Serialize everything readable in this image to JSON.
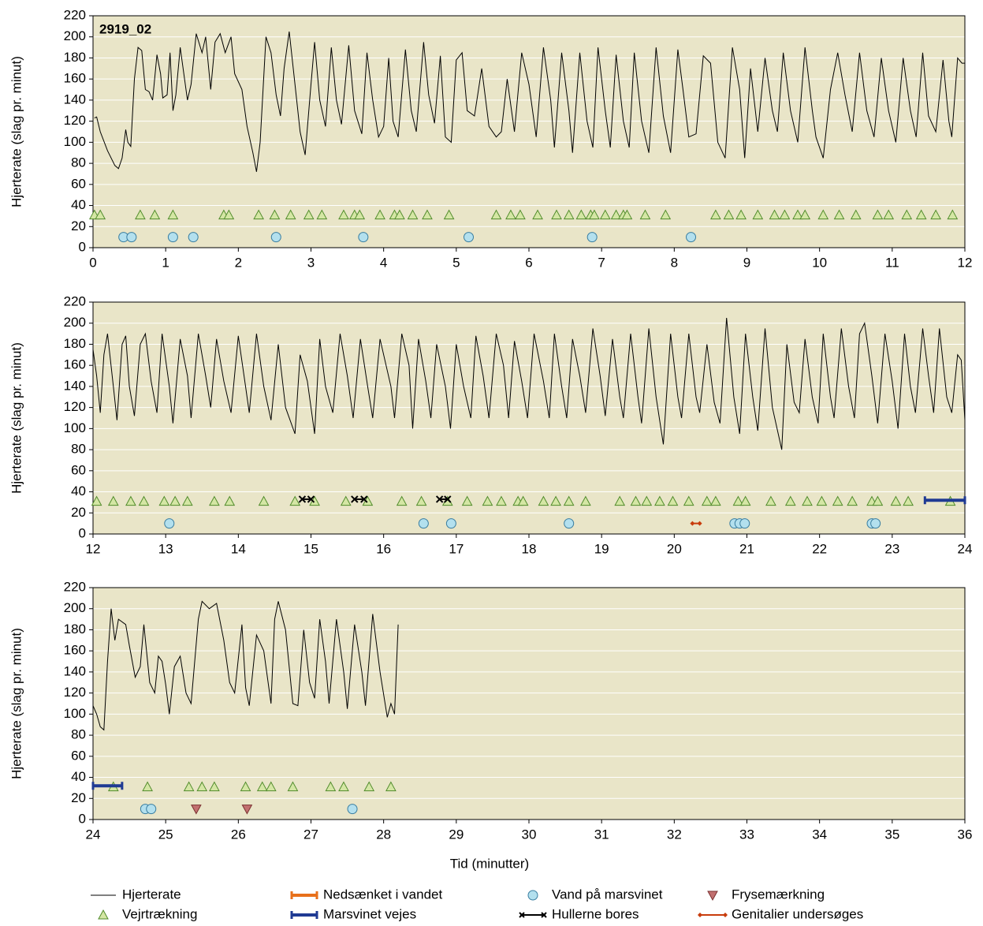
{
  "chart_data": {
    "type": "line",
    "annotation": "2919_02",
    "xlabel": "Tid (minutter)",
    "ylabel": "Hjerterate (slag pr. minut)",
    "ylim": [
      0,
      220
    ],
    "yticks": [
      0,
      20,
      40,
      60,
      80,
      100,
      120,
      140,
      160,
      180,
      200,
      220
    ],
    "grid": true,
    "panels": [
      {
        "xlim": [
          0,
          12
        ],
        "xticks": [
          0,
          1,
          2,
          3,
          4,
          5,
          6,
          7,
          8,
          9,
          10,
          11,
          12
        ]
      },
      {
        "xlim": [
          12,
          24
        ],
        "xticks": [
          12,
          13,
          14,
          15,
          16,
          17,
          18,
          19,
          20,
          21,
          22,
          23,
          24
        ]
      },
      {
        "xlim": [
          24,
          36
        ],
        "xticks": [
          24,
          25,
          26,
          27,
          28,
          29,
          30,
          31,
          32,
          33,
          34,
          35,
          36
        ]
      }
    ],
    "series": [
      {
        "name": "Hjerterate",
        "color": "#000000",
        "marker": "none",
        "x": [
          0.02,
          0.05,
          0.1,
          0.2,
          0.3,
          0.35,
          0.4,
          0.45,
          0.48,
          0.52,
          0.57,
          0.62,
          0.67,
          0.72,
          0.77,
          0.82,
          0.88,
          0.93,
          0.96,
          1.02,
          1.06,
          1.1,
          1.14,
          1.2,
          1.3,
          1.35,
          1.42,
          1.5,
          1.55,
          1.62,
          1.68,
          1.75,
          1.82,
          1.9,
          1.95,
          2.05,
          2.12,
          2.2,
          2.25,
          2.3,
          2.38,
          2.45,
          2.52,
          2.58,
          2.63,
          2.7,
          2.78,
          2.85,
          2.92,
          3.0,
          3.05,
          3.12,
          3.2,
          3.28,
          3.35,
          3.42,
          3.52,
          3.6,
          3.7,
          3.77,
          3.85,
          3.93,
          4.0,
          4.07,
          4.13,
          4.2,
          4.3,
          4.38,
          4.45,
          4.55,
          4.62,
          4.7,
          4.78,
          4.85,
          4.93,
          5.0,
          5.08,
          5.15,
          5.25,
          5.35,
          5.45,
          5.55,
          5.62,
          5.7,
          5.8,
          5.9,
          6.0,
          6.1,
          6.2,
          6.3,
          6.35,
          6.45,
          6.55,
          6.6,
          6.7,
          6.8,
          6.88,
          6.95,
          7.05,
          7.12,
          7.2,
          7.3,
          7.38,
          7.45,
          7.55,
          7.65,
          7.75,
          7.85,
          7.95,
          8.05,
          8.12,
          8.2,
          8.3,
          8.4,
          8.5,
          8.6,
          8.7,
          8.8,
          8.9,
          8.97,
          9.05,
          9.15,
          9.25,
          9.35,
          9.42,
          9.5,
          9.6,
          9.7,
          9.8,
          9.9,
          9.95,
          10.05,
          10.15,
          10.25,
          10.35,
          10.45,
          10.55,
          10.65,
          10.75,
          10.85,
          10.95,
          11.05,
          11.15,
          11.25,
          11.33,
          11.42,
          11.5,
          11.6,
          11.7,
          11.78,
          11.82,
          11.9,
          11.96,
          12.0,
          12.05,
          12.1,
          12.15,
          12.2,
          12.28,
          12.33,
          12.4,
          12.45,
          12.5,
          12.57,
          12.65,
          12.72,
          12.8,
          12.88,
          12.95,
          13.05,
          13.1,
          13.2,
          13.3,
          13.35,
          13.45,
          13.55,
          13.62,
          13.7,
          13.8,
          13.9,
          14.0,
          14.1,
          14.15,
          14.25,
          14.35,
          14.45,
          14.55,
          14.65,
          14.78,
          14.85,
          14.95,
          15.05,
          15.12,
          15.2,
          15.3,
          15.4,
          15.5,
          15.58,
          15.68,
          15.78,
          15.85,
          15.95,
          16.1,
          16.15,
          16.25,
          16.35,
          16.4,
          16.48,
          16.58,
          16.65,
          16.73,
          16.85,
          16.92,
          17.0,
          17.1,
          17.2,
          17.27,
          17.37,
          17.45,
          17.55,
          17.65,
          17.72,
          17.8,
          17.9,
          17.98,
          18.07,
          18.2,
          18.28,
          18.35,
          18.45,
          18.52,
          18.6,
          18.7,
          18.78,
          18.88,
          18.98,
          19.05,
          19.15,
          19.25,
          19.3,
          19.4,
          19.5,
          19.55,
          19.65,
          19.75,
          19.85,
          19.95,
          20.05,
          20.1,
          20.2,
          20.3,
          20.35,
          20.45,
          20.55,
          20.63,
          20.72,
          20.82,
          20.9,
          20.98,
          21.08,
          21.15,
          21.25,
          21.35,
          21.48,
          21.55,
          21.65,
          21.72,
          21.8,
          21.9,
          21.98,
          22.05,
          22.15,
          22.2,
          22.3,
          22.4,
          22.48,
          22.55,
          22.62,
          22.72,
          22.8,
          22.9,
          23.0,
          23.08,
          23.17,
          23.25,
          23.32,
          23.42,
          23.5,
          23.57,
          23.65,
          23.75,
          23.82,
          23.9,
          23.95,
          24.0,
          24.05,
          24.1,
          24.15,
          24.2,
          24.25,
          24.3,
          24.35,
          24.45,
          24.5,
          24.58,
          24.65,
          24.7,
          24.78,
          24.85,
          24.9,
          24.95,
          25.0,
          25.05,
          25.12,
          25.2,
          25.28,
          25.35,
          25.45,
          25.5,
          25.6,
          25.7,
          25.8,
          25.88,
          25.95,
          26.05,
          26.1,
          26.15,
          26.25,
          26.35,
          26.45,
          26.5,
          26.55,
          26.65,
          26.75,
          26.82,
          26.9,
          26.98,
          27.05,
          27.12,
          27.2,
          27.25,
          27.35,
          27.45,
          27.5,
          27.6,
          27.7,
          27.75,
          27.85,
          27.95,
          28.05,
          28.1,
          28.15,
          28.2
        ],
        "values": [
          123,
          124,
          110,
          92,
          78,
          75,
          85,
          112,
          100,
          96,
          160,
          190,
          187,
          150,
          148,
          140,
          183,
          165,
          142,
          145,
          185,
          130,
          145,
          190,
          140,
          155,
          203,
          185,
          200,
          150,
          195,
          203,
          185,
          200,
          165,
          150,
          115,
          90,
          72,
          100,
          200,
          185,
          145,
          125,
          170,
          205,
          155,
          110,
          88,
          155,
          195,
          140,
          115,
          190,
          140,
          117,
          192,
          130,
          108,
          185,
          140,
          105,
          115,
          180,
          120,
          105,
          188,
          130,
          110,
          195,
          145,
          118,
          182,
          105,
          100,
          178,
          185,
          130,
          125,
          170,
          115,
          105,
          110,
          160,
          110,
          185,
          155,
          105,
          190,
          140,
          95,
          185,
          130,
          90,
          185,
          120,
          95,
          190,
          130,
          95,
          183,
          120,
          95,
          185,
          120,
          90,
          190,
          125,
          90,
          188,
          150,
          105,
          108,
          182,
          175,
          100,
          85,
          190,
          150,
          85,
          170,
          110,
          180,
          130,
          110,
          185,
          130,
          100,
          190,
          130,
          105,
          85,
          150,
          185,
          145,
          110,
          185,
          130,
          105,
          180,
          130,
          100,
          180,
          130,
          105,
          185,
          125,
          110,
          178,
          120,
          105,
          180,
          175,
          175,
          150,
          115,
          170,
          190,
          140,
          108,
          180,
          188,
          140,
          112,
          180,
          190,
          145,
          115,
          190,
          140,
          105,
          185,
          150,
          110,
          190,
          150,
          120,
          185,
          145,
          115,
          188,
          140,
          115,
          190,
          140,
          108,
          180,
          120,
          95,
          170,
          145,
          95,
          185,
          140,
          115,
          190,
          150,
          110,
          185,
          140,
          110,
          185,
          140,
          110,
          190,
          160,
          100,
          185,
          145,
          110,
          180,
          140,
          100,
          180,
          140,
          110,
          188,
          150,
          110,
          190,
          160,
          110,
          183,
          145,
          110,
          190,
          145,
          110,
          190,
          140,
          110,
          185,
          150,
          115,
          195,
          150,
          112,
          185,
          130,
          110,
          190,
          130,
          105,
          195,
          130,
          85,
          190,
          130,
          110,
          190,
          130,
          115,
          180,
          125,
          105,
          205,
          130,
          95,
          190,
          130,
          98,
          195,
          120,
          80,
          180,
          125,
          115,
          185,
          130,
          105,
          190,
          130,
          110,
          195,
          140,
          110,
          190,
          200,
          150,
          105,
          190,
          145,
          100,
          190,
          140,
          115,
          195,
          150,
          115,
          195,
          130,
          115,
          170,
          165,
          108,
          100,
          88,
          85,
          150,
          200,
          170,
          190,
          185,
          165,
          135,
          145,
          185,
          130,
          120,
          155,
          150,
          128,
          100,
          145,
          155,
          120,
          110,
          190,
          207,
          200,
          205,
          170,
          130,
          120,
          185,
          125,
          108,
          175,
          160,
          110,
          190,
          207,
          180,
          110,
          108,
          180,
          130,
          115,
          190,
          150,
          110,
          190,
          140,
          105,
          185,
          140,
          108,
          195,
          140,
          97,
          110,
          100,
          185
        ]
      },
      {
        "name": "Vejrtrækning",
        "color": "#4f8a2a",
        "fill": "#d4e6a4",
        "marker": "triangle",
        "x": [
          0.02,
          0.1,
          0.65,
          0.85,
          1.1,
          1.8,
          1.87,
          2.28,
          2.5,
          2.72,
          2.97,
          3.15,
          3.45,
          3.6,
          3.67,
          3.95,
          4.15,
          4.22,
          4.4,
          4.6,
          4.9,
          5.55,
          5.75,
          5.88,
          6.12,
          6.38,
          6.55,
          6.72,
          6.85,
          6.9,
          7.05,
          7.2,
          7.3,
          7.35,
          7.6,
          7.88,
          8.57,
          8.75,
          8.92,
          9.15,
          9.38,
          9.52,
          9.7,
          9.8,
          10.05,
          10.27,
          10.5,
          10.8,
          10.95,
          11.2,
          11.4,
          11.6,
          11.83,
          12.05,
          12.28,
          12.52,
          12.7,
          12.98,
          13.13,
          13.3,
          13.67,
          13.88,
          14.35,
          14.78,
          15.05,
          15.48,
          15.78,
          16.25,
          16.52,
          16.88,
          17.15,
          17.43,
          17.62,
          17.85,
          17.92,
          18.2,
          18.37,
          18.55,
          18.78,
          19.25,
          19.47,
          19.62,
          19.8,
          19.98,
          20.2,
          20.45,
          20.57,
          20.88,
          20.98,
          21.33,
          21.6,
          21.83,
          22.03,
          22.25,
          22.45,
          22.72,
          22.8,
          23.05,
          23.22,
          23.8,
          24.28,
          24.75,
          25.32,
          25.5,
          25.67,
          26.1,
          26.33,
          26.45,
          26.75,
          27.27,
          27.45,
          27.8,
          28.1
        ],
        "values": [
          31,
          31,
          31,
          31,
          31,
          31,
          31,
          31,
          31,
          31,
          31,
          31,
          31,
          31,
          31,
          31,
          31,
          31,
          31,
          31,
          31,
          31,
          31,
          31,
          31,
          31,
          31,
          31,
          31,
          31,
          31,
          31,
          31,
          31,
          31,
          31,
          31,
          31,
          31,
          31,
          31,
          31,
          31,
          31,
          31,
          31,
          31,
          31,
          31,
          31,
          31,
          31,
          31,
          31,
          31,
          31,
          31,
          31,
          31,
          31,
          31,
          31,
          31,
          31,
          31,
          31,
          31,
          31,
          31,
          31,
          31,
          31,
          31,
          31,
          31,
          31,
          31,
          31,
          31,
          31,
          31,
          31,
          31,
          31,
          31,
          31,
          31,
          31,
          31,
          31,
          31,
          31,
          31,
          31,
          31,
          31,
          31,
          31,
          31,
          31,
          31,
          31,
          31,
          31,
          31,
          31,
          31,
          31,
          31,
          31,
          31,
          31,
          31
        ]
      },
      {
        "name": "Nedsænket i vandet",
        "color": "#e8701a",
        "marker": "bar",
        "x": [],
        "values": []
      },
      {
        "name": "Marsvinet vejes",
        "color": "#1f3a93",
        "marker": "bar",
        "x": [
          23.45,
          24,
          24.4
        ],
        "values": [
          32,
          32,
          32
        ]
      },
      {
        "name": "Vand på marsvinet",
        "color": "#3a7ea0",
        "fill": "#b3e0ee",
        "marker": "circle",
        "x": [
          0.42,
          0.53,
          1.1,
          1.38,
          2.52,
          3.72,
          5.17,
          6.87,
          8.23,
          13.05,
          16.55,
          16.93,
          18.55,
          20.83,
          20.9,
          20.97,
          22.72,
          22.77,
          24.72,
          24.8,
          27.57
        ],
        "values": [
          10,
          10,
          10,
          10,
          10,
          10,
          10,
          10,
          10,
          10,
          10,
          10,
          10,
          10,
          10,
          10,
          10,
          10,
          10,
          10,
          10
        ]
      },
      {
        "name": "Hullerne bores",
        "color": "#000000",
        "marker": "cross",
        "x": [
          14.88,
          15.0,
          15.0,
          15.6,
          15.73,
          15.73,
          16.77,
          16.88
        ],
        "values": [
          33,
          33,
          null,
          33,
          33,
          null,
          33,
          33
        ]
      },
      {
        "name": "Frysemærkning",
        "color": "#7a3030",
        "fill": "#c27070",
        "marker": "triangle-down",
        "x": [
          25.42,
          26.12
        ],
        "values": [
          10,
          10
        ]
      },
      {
        "name": "Genitalier undersøges",
        "color": "#c83c0c",
        "marker": "diamond",
        "x": [
          20.25,
          20.35
        ],
        "values": [
          10,
          10
        ]
      }
    ]
  }
}
